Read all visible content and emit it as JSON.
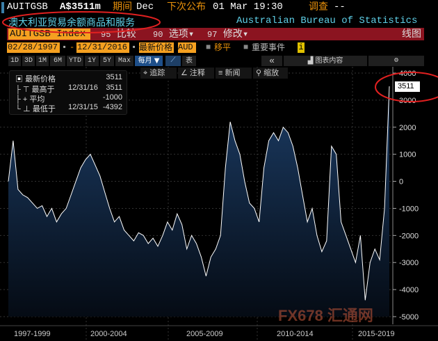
{
  "header": {
    "ticker": "AUITGSB",
    "value": "A$3511m",
    "period_label": "期间",
    "period": "Dec",
    "next_release_label": "下次公布",
    "next_release": "01 Mar 19:30",
    "survey_label": "调查",
    "survey": "--",
    "subtitle": "澳大利亚贸易余额商品和服务",
    "source": "Australian Bureau of Statistics"
  },
  "toolbar": {
    "security": "AUITGSB Index",
    "compare_num": "95",
    "compare": "比较",
    "options_num": "90",
    "options": "选项",
    "edit_num": "97",
    "edit": "修改",
    "chart_type": "线图"
  },
  "range": {
    "start": "02/28/1997",
    "end": "12/31/2016",
    "price_type": "最新价格",
    "currency": "AUD",
    "smooth": "移平",
    "events": "重要事件",
    "info": "i"
  },
  "periods": [
    "1D",
    "3D",
    "1M",
    "6M",
    "YTD",
    "1Y",
    "5Y",
    "Max"
  ],
  "frequency": "每月 ▼",
  "table_label": "表",
  "collapse": "«",
  "chart_contents": "图表内容",
  "tools": {
    "track": "追踪",
    "annotate": "注释",
    "news": "新闻",
    "zoom": "缩放"
  },
  "legend": {
    "last_label": "最新价格",
    "last": "3511",
    "high_label": "最高于",
    "high_date": "12/31/16",
    "high": "3511",
    "avg_label": "平均",
    "avg": "-1000",
    "low_label": "最低于",
    "low_date": "12/31/15",
    "low": "-4392"
  },
  "watermark": "FX678 汇通网",
  "colors": {
    "line": "#ffffff",
    "fill_top": "#1c3d66",
    "fill_bottom": "#050b14",
    "accent": "#e8900a",
    "bar": "#8b1420"
  },
  "chart_data": {
    "type": "area",
    "frequency": "quarterly (approx.)",
    "start": "1997Q1",
    "end": "2016Q4",
    "ylim": [
      -5000,
      4000
    ],
    "yticks": [
      4000,
      3000,
      2000,
      1000,
      0,
      -1000,
      -2000,
      -3000,
      -4000,
      -5000
    ],
    "xlabels": [
      "1997-1999",
      "2000-2004",
      "2005-2009",
      "2010-2014",
      "2015-2019"
    ],
    "last_value_label": "3511",
    "values": [
      0,
      1500,
      -300,
      -500,
      -600,
      -800,
      -1000,
      -900,
      -1300,
      -1000,
      -1500,
      -1200,
      -1000,
      -500,
      0,
      500,
      800,
      1000,
      600,
      200,
      -400,
      -1000,
      -1500,
      -1300,
      -1800,
      -2000,
      -2200,
      -1900,
      -2000,
      -2300,
      -2100,
      -2400,
      -2000,
      -1500,
      -1800,
      -1200,
      -1600,
      -2500,
      -2000,
      -2300,
      -2800,
      -3500,
      -2800,
      -2500,
      -2000,
      500,
      2200,
      1500,
      1000,
      0,
      -800,
      -1000,
      -1500,
      500,
      1500,
      1800,
      1500,
      2000,
      1800,
      1300,
      500,
      -500,
      -1500,
      -1000,
      -2000,
      -2600,
      -2200,
      1300,
      1000,
      -1500,
      -2000,
      -2500,
      -3000,
      -2000,
      -4392,
      -3000,
      -2500,
      -2900,
      -1000,
      3511
    ]
  }
}
